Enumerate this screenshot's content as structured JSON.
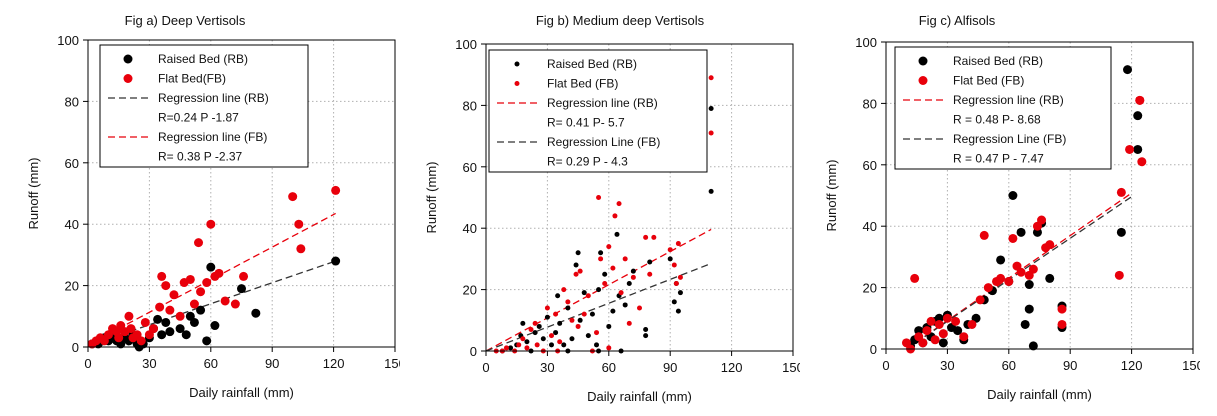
{
  "chart_data": [
    {
      "type": "scatter",
      "title": "Fig a) Deep Vertisols",
      "xlabel": "Daily rainfall (mm)",
      "ylabel": "Runoff (mm)",
      "xlim": [
        0,
        150
      ],
      "ylim": [
        0,
        100
      ],
      "xticks": [
        0,
        30,
        60,
        90,
        120,
        150
      ],
      "yticks": [
        0,
        20,
        40,
        60,
        80,
        100
      ],
      "grid": true,
      "legend_position": "top-left",
      "legend": [
        "Raised Bed (RB)",
        "Flat Bed(FB)",
        "Regression line (RB)",
        "R=0.24 P -1.87",
        "Regression line (FB)",
        "R= 0.38 P -2.37"
      ],
      "series": [
        {
          "name": "Raised Bed (RB)",
          "color": "#000000",
          "points": [
            [
              2,
              1
            ],
            [
              5,
              1
            ],
            [
              7,
              2
            ],
            [
              8,
              3
            ],
            [
              10,
              2
            ],
            [
              12,
              3
            ],
            [
              14,
              2
            ],
            [
              16,
              1
            ],
            [
              18,
              3
            ],
            [
              20,
              2
            ],
            [
              22,
              4
            ],
            [
              24,
              1
            ],
            [
              25,
              0
            ],
            [
              27,
              1
            ],
            [
              30,
              3
            ],
            [
              32,
              6
            ],
            [
              34,
              9
            ],
            [
              36,
              4
            ],
            [
              38,
              8
            ],
            [
              40,
              5
            ],
            [
              45,
              6
            ],
            [
              48,
              4
            ],
            [
              50,
              10
            ],
            [
              52,
              8
            ],
            [
              55,
              12
            ],
            [
              58,
              2
            ],
            [
              60,
              26
            ],
            [
              62,
              7
            ],
            [
              75,
              19
            ],
            [
              82,
              11
            ],
            [
              121,
              28
            ]
          ]
        },
        {
          "name": "Flat Bed(FB)",
          "color": "#e8000b",
          "points": [
            [
              2,
              1
            ],
            [
              4,
              2
            ],
            [
              6,
              3
            ],
            [
              8,
              2
            ],
            [
              10,
              4
            ],
            [
              12,
              6
            ],
            [
              14,
              5
            ],
            [
              15,
              3
            ],
            [
              16,
              7
            ],
            [
              18,
              5
            ],
            [
              20,
              10
            ],
            [
              21,
              6
            ],
            [
              22,
              3
            ],
            [
              24,
              4
            ],
            [
              26,
              2
            ],
            [
              28,
              8
            ],
            [
              30,
              4
            ],
            [
              32,
              6
            ],
            [
              35,
              13
            ],
            [
              36,
              23
            ],
            [
              38,
              20
            ],
            [
              40,
              12
            ],
            [
              42,
              17
            ],
            [
              45,
              10
            ],
            [
              47,
              21
            ],
            [
              50,
              22
            ],
            [
              52,
              14
            ],
            [
              54,
              34
            ],
            [
              55,
              18
            ],
            [
              58,
              21
            ],
            [
              60,
              40
            ],
            [
              62,
              23
            ],
            [
              64,
              24
            ],
            [
              67,
              15
            ],
            [
              72,
              14
            ],
            [
              76,
              23
            ],
            [
              100,
              49
            ],
            [
              103,
              40
            ],
            [
              104,
              32
            ],
            [
              121,
              51
            ]
          ]
        }
      ],
      "lines": [
        {
          "name": "Regression line (RB)",
          "color": "#333333",
          "x": [
            0,
            121
          ],
          "y": [
            0.4,
            28.0
          ]
        },
        {
          "name": "Regression line (FB)",
          "color": "#e8000b",
          "x": [
            0,
            121
          ],
          "y": [
            0.7,
            43.5
          ]
        }
      ]
    },
    {
      "type": "scatter",
      "title": "Fig b) Medium deep Vertisols",
      "xlabel": "Daily rainfall (mm)",
      "ylabel": "Runoff (mm)",
      "xlim": [
        0,
        150
      ],
      "ylim": [
        0,
        100
      ],
      "xticks": [
        0,
        30,
        60,
        90,
        120,
        150
      ],
      "yticks": [
        0,
        20,
        40,
        60,
        80,
        100
      ],
      "grid": true,
      "legend_position": "top-left",
      "legend": [
        "Raised Bed (RB)",
        "Flat Bed (FB)",
        "Regression line (RB)",
        "R= 0.41 P- 5.7",
        "Regression Line (FB)",
        "R= 0.29 P - 4.3"
      ],
      "series": [
        {
          "name": "Raised Bed (RB)",
          "color": "#000000",
          "points": [
            [
              8,
              0
            ],
            [
              12,
              1
            ],
            [
              15,
              2
            ],
            [
              17,
              5
            ],
            [
              18,
              9
            ],
            [
              20,
              3
            ],
            [
              22,
              0
            ],
            [
              24,
              6
            ],
            [
              26,
              8
            ],
            [
              28,
              4
            ],
            [
              30,
              11
            ],
            [
              32,
              2
            ],
            [
              34,
              6
            ],
            [
              35,
              18
            ],
            [
              36,
              9
            ],
            [
              38,
              2
            ],
            [
              40,
              14
            ],
            [
              42,
              4
            ],
            [
              44,
              28
            ],
            [
              45,
              32
            ],
            [
              46,
              10
            ],
            [
              48,
              19
            ],
            [
              50,
              5
            ],
            [
              52,
              12
            ],
            [
              54,
              2
            ],
            [
              55,
              20
            ],
            [
              56,
              32
            ],
            [
              58,
              25
            ],
            [
              60,
              8
            ],
            [
              62,
              13
            ],
            [
              64,
              38
            ],
            [
              65,
              18
            ],
            [
              66,
              0
            ],
            [
              68,
              15
            ],
            [
              70,
              22
            ],
            [
              72,
              26
            ],
            [
              78,
              7
            ],
            [
              78,
              5
            ],
            [
              80,
              29
            ],
            [
              90,
              30
            ],
            [
              92,
              16
            ],
            [
              93,
              22
            ],
            [
              94,
              13
            ],
            [
              95,
              19
            ],
            [
              110,
              52
            ],
            [
              110,
              79
            ],
            [
              40,
              0
            ],
            [
              55,
              0
            ]
          ]
        },
        {
          "name": "Flat Bed (FB)",
          "color": "#e8000b",
          "points": [
            [
              5,
              0
            ],
            [
              8,
              0
            ],
            [
              10,
              1
            ],
            [
              14,
              0
            ],
            [
              16,
              2
            ],
            [
              18,
              4
            ],
            [
              20,
              1
            ],
            [
              22,
              7
            ],
            [
              24,
              9
            ],
            [
              25,
              2
            ],
            [
              28,
              0
            ],
            [
              30,
              14
            ],
            [
              32,
              5
            ],
            [
              34,
              12
            ],
            [
              36,
              3
            ],
            [
              38,
              20
            ],
            [
              40,
              16
            ],
            [
              42,
              10
            ],
            [
              44,
              25
            ],
            [
              45,
              8
            ],
            [
              46,
              26
            ],
            [
              48,
              12
            ],
            [
              50,
              18
            ],
            [
              52,
              0
            ],
            [
              54,
              6
            ],
            [
              55,
              50
            ],
            [
              56,
              30
            ],
            [
              58,
              22
            ],
            [
              60,
              34
            ],
            [
              62,
              27
            ],
            [
              63,
              44
            ],
            [
              65,
              48
            ],
            [
              66,
              19
            ],
            [
              68,
              30
            ],
            [
              70,
              9
            ],
            [
              72,
              24
            ],
            [
              75,
              14
            ],
            [
              78,
              37
            ],
            [
              80,
              25
            ],
            [
              82,
              37
            ],
            [
              90,
              33
            ],
            [
              92,
              28
            ],
            [
              93,
              22
            ],
            [
              94,
              35
            ],
            [
              95,
              24
            ],
            [
              110,
              89
            ],
            [
              110,
              71
            ],
            [
              35,
              0
            ],
            [
              60,
              1
            ]
          ]
        }
      ],
      "lines": [
        {
          "name": "Regression line (RB)",
          "color": "#e8000b",
          "x": [
            0,
            110
          ],
          "y": [
            0,
            39.6
          ]
        },
        {
          "name": "Regression Line (FB)",
          "color": "#333333",
          "x": [
            0,
            110
          ],
          "y": [
            0,
            28.5
          ]
        }
      ]
    },
    {
      "type": "scatter",
      "title": "Fig c) Alfisols",
      "xlabel": "Daily rainfall (mm)",
      "ylabel": "Runoff (mm)",
      "xlim": [
        0,
        150
      ],
      "ylim": [
        0,
        100
      ],
      "xticks": [
        0,
        30,
        60,
        90,
        120,
        150
      ],
      "yticks": [
        0,
        20,
        40,
        60,
        80,
        100
      ],
      "grid": true,
      "legend_position": "top-left",
      "legend": [
        "Raised Bed (RB)",
        "Flat Bed (FB)",
        "Regression line (RB)",
        "R = 0.48 P- 8.68",
        "Regression Line (FB)",
        "R = 0.47 P - 7.47"
      ],
      "series": [
        {
          "name": "Raised Bed (RB)",
          "color": "#000000",
          "points": [
            [
              12,
              1
            ],
            [
              14,
              3
            ],
            [
              16,
              6
            ],
            [
              18,
              2
            ],
            [
              20,
              7
            ],
            [
              22,
              4
            ],
            [
              24,
              9
            ],
            [
              26,
              10
            ],
            [
              28,
              2
            ],
            [
              30,
              11
            ],
            [
              32,
              7
            ],
            [
              35,
              6
            ],
            [
              38,
              3
            ],
            [
              40,
              8
            ],
            [
              44,
              10
            ],
            [
              48,
              16
            ],
            [
              52,
              19
            ],
            [
              56,
              29
            ],
            [
              60,
              22
            ],
            [
              62,
              50
            ],
            [
              66,
              38
            ],
            [
              68,
              8
            ],
            [
              70,
              13
            ],
            [
              70,
              21
            ],
            [
              72,
              1
            ],
            [
              74,
              38
            ],
            [
              76,
              41
            ],
            [
              80,
              23
            ],
            [
              86,
              7
            ],
            [
              86,
              14
            ],
            [
              115,
              38
            ],
            [
              118,
              91
            ],
            [
              123,
              76
            ],
            [
              123,
              65
            ]
          ]
        },
        {
          "name": "Flat Bed (FB)",
          "color": "#e8000b",
          "points": [
            [
              10,
              2
            ],
            [
              12,
              0
            ],
            [
              14,
              23
            ],
            [
              16,
              4
            ],
            [
              18,
              2
            ],
            [
              20,
              6
            ],
            [
              22,
              9
            ],
            [
              24,
              3
            ],
            [
              26,
              8
            ],
            [
              28,
              5
            ],
            [
              30,
              10
            ],
            [
              34,
              9
            ],
            [
              38,
              4
            ],
            [
              42,
              8
            ],
            [
              46,
              16
            ],
            [
              48,
              37
            ],
            [
              50,
              20
            ],
            [
              54,
              22
            ],
            [
              56,
              23
            ],
            [
              60,
              22
            ],
            [
              62,
              36
            ],
            [
              64,
              27
            ],
            [
              66,
              25
            ],
            [
              70,
              24
            ],
            [
              72,
              26
            ],
            [
              74,
              40
            ],
            [
              76,
              42
            ],
            [
              78,
              33
            ],
            [
              80,
              34
            ],
            [
              86,
              13
            ],
            [
              86,
              8
            ],
            [
              114,
              24
            ],
            [
              115,
              51
            ],
            [
              119,
              65
            ],
            [
              124,
              81
            ],
            [
              125,
              61
            ],
            [
              124,
              81
            ]
          ]
        }
      ],
      "lines": [
        {
          "name": "Regression line (RB)",
          "color": "#e8000b",
          "x": [
            10,
            120
          ],
          "y": [
            0,
            50.8
          ]
        },
        {
          "name": "Regression Line (FB)",
          "color": "#333333",
          "x": [
            10,
            120
          ],
          "y": [
            0,
            49.6
          ]
        }
      ]
    }
  ]
}
